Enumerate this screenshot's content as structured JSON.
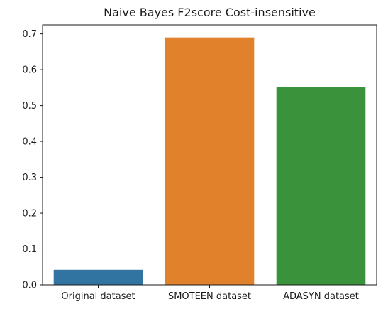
{
  "chart_data": {
    "type": "bar",
    "title": "Naive Bayes F2score Cost-insensitive",
    "xlabel": "",
    "ylabel": "",
    "categories": [
      "Original dataset",
      "SMOTEEN dataset",
      "ADASYN dataset"
    ],
    "values": [
      0.042,
      0.69,
      0.552
    ],
    "colors": [
      "#3274a1",
      "#e1812c",
      "#3a923a"
    ],
    "ylim": [
      0,
      0.725
    ],
    "yticks": [
      0.0,
      0.1,
      0.2,
      0.3,
      0.4,
      0.5,
      0.6,
      0.7
    ],
    "ytick_labels": [
      "0.0",
      "0.1",
      "0.2",
      "0.3",
      "0.4",
      "0.5",
      "0.6",
      "0.7"
    ],
    "grid": false,
    "legend": "none"
  }
}
